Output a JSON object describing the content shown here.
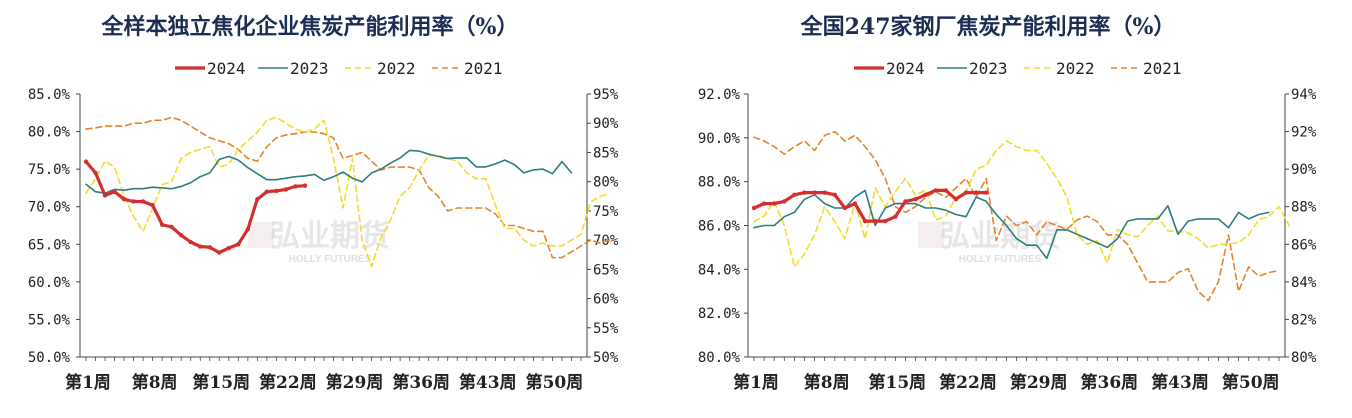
{
  "colors": {
    "2024": "#d32f2f",
    "2023": "#2e7d7d",
    "2022": "#f2dc2a",
    "2021": "#e8832a"
  },
  "watermark": {
    "cn": "弘业期货",
    "en": "HOLLY FUTURES"
  },
  "chart_data": [
    {
      "type": "line",
      "title": "全样本独立焦化企业焦炭产能利用率（%）",
      "legend": [
        "2024",
        "2023",
        "2022",
        "2021"
      ],
      "xlabel": "",
      "ylabel": "",
      "xticks": [
        "第1周",
        "第8周",
        "第15周",
        "第22周",
        "第29周",
        "第36周",
        "第43周",
        "第50周"
      ],
      "left_ticks": [
        "50.0%",
        "55.0%",
        "60.0%",
        "65.0%",
        "70.0%",
        "75.0%",
        "80.0%",
        "85.0%"
      ],
      "right_ticks": [
        "50%",
        "55%",
        "60%",
        "65%",
        "70%",
        "75%",
        "80%",
        "85%",
        "90%",
        "95%"
      ],
      "left_ylim": [
        50,
        85
      ],
      "right_ylim": [
        50,
        95
      ],
      "series": [
        {
          "name": "2024",
          "axis": "left",
          "values": [
            76.0,
            74.5,
            71.5,
            72.0,
            71.0,
            70.7,
            70.7,
            70.2,
            67.6,
            67.3,
            66.2,
            65.3,
            64.7,
            64.6,
            63.9,
            64.5,
            65.0,
            67.0,
            71.0,
            72.0,
            72.1,
            72.3,
            72.7,
            72.8
          ]
        },
        {
          "name": "2023",
          "axis": "left",
          "values": [
            73.0,
            72.0,
            71.8,
            72.3,
            72.2,
            72.4,
            72.4,
            72.6,
            72.5,
            72.4,
            72.7,
            73.2,
            74.0,
            74.5,
            76.3,
            76.7,
            76.2,
            75.2,
            74.4,
            73.6,
            73.6,
            73.8,
            74.0,
            74.1,
            74.3,
            73.5,
            74.0,
            74.6,
            73.8,
            73.3,
            74.5,
            75.0,
            75.8,
            76.5,
            77.5,
            77.4,
            77.0,
            76.7,
            76.4,
            76.5,
            76.5,
            75.3,
            75.3,
            75.7,
            76.2,
            75.6,
            74.5,
            74.9,
            75.0,
            74.4,
            76.0,
            74.5
          ]
        },
        {
          "name": "2022",
          "axis": "right",
          "values": [
            78.0,
            80.5,
            83.5,
            82.5,
            77.5,
            74.0,
            71.5,
            75.5,
            79.5,
            80.0,
            84.0,
            85.0,
            85.5,
            86.0,
            82.5,
            83.0,
            85.5,
            87.0,
            88.5,
            90.5,
            91.0,
            90.0,
            89.0,
            88.5,
            89.0,
            90.5,
            84.0,
            75.5,
            84.0,
            70.0,
            65.5,
            70.5,
            73.5,
            77.5,
            79.0,
            82.0,
            84.5,
            84.5,
            84.0,
            83.5,
            81.5,
            80.5,
            80.5,
            76.0,
            72.0,
            72.0,
            70.0,
            69.0,
            69.5,
            69.0,
            69.0,
            70.0,
            71.0,
            76.5,
            77.5,
            78.0
          ]
        },
        {
          "name": "2021",
          "axis": "right",
          "values": [
            89.0,
            89.2,
            89.5,
            89.5,
            89.5,
            90.0,
            90.0,
            90.5,
            90.5,
            91.0,
            90.5,
            89.5,
            88.5,
            87.5,
            87.0,
            86.5,
            85.5,
            84.0,
            83.5,
            86.0,
            87.5,
            88.0,
            88.2,
            88.5,
            88.5,
            88.2,
            87.5,
            84.0,
            84.5,
            85.0,
            83.5,
            82.0,
            82.5,
            82.5,
            82.5,
            82.0,
            79.0,
            77.5,
            75.0,
            75.5,
            75.5,
            75.5,
            75.5,
            74.5,
            72.5,
            72.5,
            72.0,
            71.5,
            71.5,
            67.0,
            67.0,
            68.0,
            69.0,
            70.0,
            69.5,
            70.0
          ]
        }
      ]
    },
    {
      "type": "line",
      "title": "全国247家钢厂焦炭产能利用率（%）",
      "legend": [
        "2024",
        "2023",
        "2022",
        "2021"
      ],
      "xlabel": "",
      "ylabel": "",
      "xticks": [
        "第1周",
        "第8周",
        "第15周",
        "第22周",
        "第29周",
        "第36周",
        "第43周",
        "第50周"
      ],
      "left_ticks": [
        "80.0%",
        "82.0%",
        "84.0%",
        "86.0%",
        "88.0%",
        "90.0%",
        "92.0%"
      ],
      "right_ticks": [
        "80%",
        "82%",
        "84%",
        "86%",
        "88%",
        "90%",
        "92%",
        "94%"
      ],
      "left_ylim": [
        80,
        92
      ],
      "right_ylim": [
        80,
        94
      ],
      "series": [
        {
          "name": "2024",
          "axis": "left",
          "values": [
            86.8,
            87.0,
            87.0,
            87.1,
            87.4,
            87.5,
            87.5,
            87.5,
            87.4,
            86.8,
            87.0,
            86.2,
            86.2,
            86.2,
            86.4,
            87.1,
            87.2,
            87.4,
            87.6,
            87.6,
            87.2,
            87.5,
            87.5,
            87.5
          ]
        },
        {
          "name": "2023",
          "axis": "left",
          "values": [
            85.9,
            86.0,
            86.0,
            86.4,
            86.6,
            87.2,
            87.4,
            87.0,
            86.8,
            86.8,
            87.3,
            87.6,
            86.0,
            86.8,
            87.0,
            87.0,
            87.0,
            86.8,
            86.8,
            86.7,
            86.5,
            86.4,
            87.3,
            87.1,
            86.5,
            86.0,
            85.4,
            85.1,
            85.1,
            84.5,
            85.8,
            85.8,
            85.6,
            85.4,
            85.2,
            85.0,
            85.4,
            86.2,
            86.3,
            86.3,
            86.3,
            86.9,
            85.6,
            86.2,
            86.3,
            86.3,
            86.3,
            85.9,
            86.6,
            86.3,
            86.5,
            86.6
          ]
        },
        {
          "name": "2022",
          "axis": "right",
          "values": [
            87.2,
            87.5,
            88.3,
            87.0,
            84.8,
            85.5,
            86.5,
            88.0,
            87.2,
            86.3,
            88.2,
            86.3,
            89.0,
            88.0,
            88.8,
            89.5,
            88.6,
            88.9,
            87.3,
            87.5,
            88.5,
            88.8,
            90.0,
            90.2,
            91.0,
            91.5,
            91.2,
            91.0,
            91.0,
            90.3,
            89.5,
            88.5,
            86.5,
            86.0,
            86.2,
            85.0,
            86.8,
            86.5,
            86.4,
            87.0,
            87.5,
            86.7,
            86.7,
            86.6,
            86.3,
            85.8,
            86.0,
            86.0,
            86.1,
            86.5,
            87.3,
            87.5,
            88.0,
            87.0
          ]
        },
        {
          "name": "2021",
          "axis": "right",
          "values": [
            91.7,
            91.5,
            91.2,
            90.8,
            91.2,
            91.5,
            91.0,
            91.8,
            92.0,
            91.5,
            91.8,
            91.2,
            90.5,
            89.5,
            88.0,
            87.7,
            88.0,
            88.5,
            88.8,
            88.5,
            89.0,
            89.5,
            88.5,
            89.5,
            86.2,
            87.5,
            87.0,
            87.2,
            86.5,
            87.2,
            87.0,
            86.8,
            87.3,
            87.5,
            87.2,
            86.5,
            86.5,
            86.0,
            85.0,
            84.0,
            84.0,
            84.0,
            84.5,
            84.7,
            83.5,
            83.0,
            84.0,
            86.5,
            83.5,
            84.8,
            84.3,
            84.5,
            84.6
          ]
        }
      ]
    }
  ]
}
